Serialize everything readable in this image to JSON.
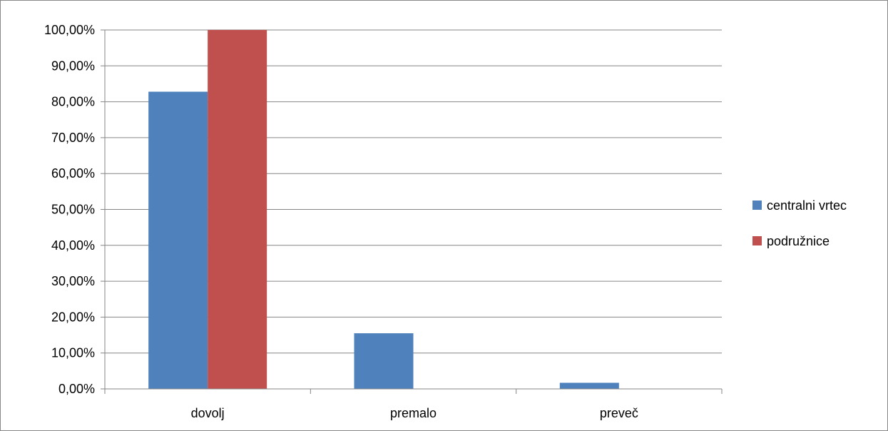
{
  "chart_data": {
    "type": "bar",
    "categories": [
      "dovolj",
      "premalo",
      "preveč"
    ],
    "series": [
      {
        "name": "centralni vrtec",
        "values": [
          0.828,
          0.155,
          0.017
        ],
        "color": "#4F81BD"
      },
      {
        "name": "podružnice",
        "values": [
          1.0,
          0.0,
          0.0
        ],
        "color": "#C0504D"
      }
    ],
    "y_ticks": [
      "0,00%",
      "10,00%",
      "20,00%",
      "30,00%",
      "40,00%",
      "50,00%",
      "60,00%",
      "70,00%",
      "80,00%",
      "90,00%",
      "100,00%"
    ],
    "ylim": [
      0,
      1
    ],
    "grid": true,
    "legend_position": "right",
    "title": "",
    "xlabel": "",
    "ylabel": ""
  }
}
